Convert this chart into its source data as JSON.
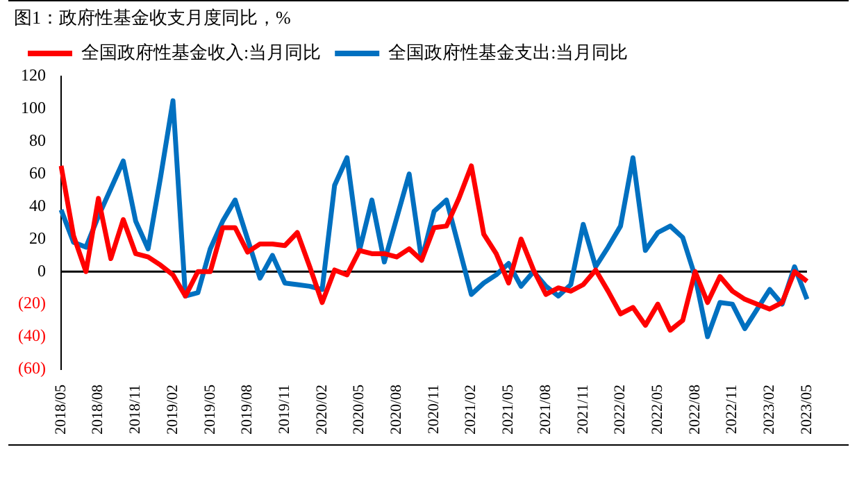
{
  "chart_data": {
    "type": "line",
    "title": "图1：政府性基金收支月度同比，%",
    "categories": [
      "2018/05",
      null,
      null,
      "2018/08",
      null,
      null,
      "2018/11",
      null,
      null,
      "2019/02",
      null,
      null,
      "2019/05",
      null,
      null,
      "2019/08",
      null,
      null,
      "2019/11",
      null,
      null,
      "2020/02",
      null,
      null,
      "2020/05",
      null,
      null,
      "2020/08",
      null,
      null,
      "2020/11",
      null,
      null,
      "2021/02",
      null,
      null,
      "2021/05",
      null,
      null,
      "2021/08",
      null,
      null,
      "2021/11",
      null,
      null,
      "2022/02",
      null,
      null,
      "2022/05",
      null,
      null,
      "2022/08",
      null,
      null,
      "2022/11",
      null,
      null,
      "2023/02",
      null,
      null,
      "2023/05"
    ],
    "series": [
      {
        "name": "全国政府性基金收入:当月同比",
        "color": "#ff0000",
        "values": [
          65,
          22,
          0,
          45,
          8,
          32,
          11,
          9,
          4,
          -2,
          -15,
          0,
          0,
          27,
          27,
          12,
          17,
          17,
          16,
          24,
          3,
          -19,
          1,
          -2,
          13,
          11,
          11,
          9,
          14,
          7,
          27,
          28,
          45,
          65,
          23,
          11,
          -7,
          20,
          1,
          -14,
          -10,
          -12,
          -8,
          1,
          -12,
          -26,
          -22,
          -33,
          -20,
          -36,
          -30,
          0,
          -19,
          -3,
          -12,
          -17,
          -20,
          -23,
          -19,
          0,
          -6
        ]
      },
      {
        "name": "全国政府性基金支出:当月同比",
        "color": "#0070c0",
        "values": [
          38,
          18,
          15,
          34,
          51,
          68,
          31,
          14,
          58,
          105,
          -15,
          -13,
          14,
          31,
          44,
          20,
          -4,
          10,
          -7,
          -8,
          -9,
          -11,
          53,
          70,
          13,
          44,
          6,
          33,
          60,
          7,
          37,
          44,
          15,
          -14,
          -7,
          -2,
          5,
          -9,
          0,
          -9,
          -15,
          -8,
          29,
          3,
          15,
          28,
          70,
          13,
          24,
          28,
          21,
          -3,
          -40,
          -19,
          -20,
          -35,
          -23,
          -11,
          -20,
          3,
          -17
        ]
      }
    ],
    "ylim": [
      -60,
      120
    ],
    "yticks": [
      {
        "value": -60,
        "label": "(60)"
      },
      {
        "value": -40,
        "label": "(40)"
      },
      {
        "value": -20,
        "label": "(20)"
      },
      0,
      20,
      40,
      60,
      80,
      100,
      120
    ],
    "ref_lines": [
      {
        "axis": "y",
        "value": 0,
        "color": "#000000"
      }
    ],
    "grid": false,
    "legend": "top left",
    "marker": "none",
    "line_style": "solid"
  }
}
